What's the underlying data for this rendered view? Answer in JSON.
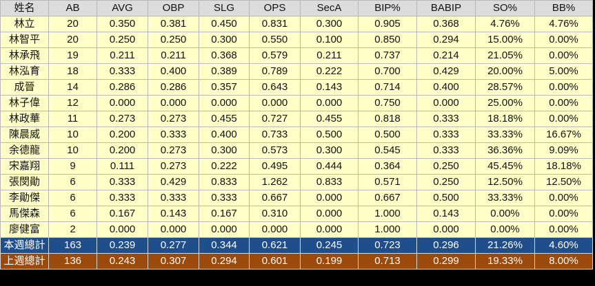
{
  "headers": [
    "姓名",
    "AB",
    "AVG",
    "OBP",
    "SLG",
    "OPS",
    "SecA",
    "BIP%",
    "BABIP",
    "SO%",
    "BB%"
  ],
  "players": [
    [
      "林立",
      "20",
      "0.350",
      "0.381",
      "0.450",
      "0.831",
      "0.300",
      "0.905",
      "0.368",
      "4.76%",
      "4.76%"
    ],
    [
      "林智平",
      "20",
      "0.250",
      "0.250",
      "0.300",
      "0.550",
      "0.100",
      "0.850",
      "0.294",
      "15.00%",
      "0.00%"
    ],
    [
      "林承飛",
      "19",
      "0.211",
      "0.211",
      "0.368",
      "0.579",
      "0.211",
      "0.737",
      "0.214",
      "21.05%",
      "0.00%"
    ],
    [
      "林泓育",
      "18",
      "0.333",
      "0.400",
      "0.389",
      "0.789",
      "0.222",
      "0.700",
      "0.429",
      "20.00%",
      "5.00%"
    ],
    [
      "成晉",
      "14",
      "0.286",
      "0.286",
      "0.357",
      "0.643",
      "0.143",
      "0.714",
      "0.400",
      "28.57%",
      "0.00%"
    ],
    [
      "林子偉",
      "12",
      "0.000",
      "0.000",
      "0.000",
      "0.000",
      "0.000",
      "0.750",
      "0.000",
      "25.00%",
      "0.00%"
    ],
    [
      "林政華",
      "11",
      "0.273",
      "0.273",
      "0.455",
      "0.727",
      "0.455",
      "0.818",
      "0.333",
      "18.18%",
      "0.00%"
    ],
    [
      "陳晨威",
      "10",
      "0.200",
      "0.333",
      "0.400",
      "0.733",
      "0.500",
      "0.500",
      "0.333",
      "33.33%",
      "16.67%"
    ],
    [
      "余德龍",
      "10",
      "0.200",
      "0.273",
      "0.300",
      "0.573",
      "0.300",
      "0.545",
      "0.333",
      "36.36%",
      "9.09%"
    ],
    [
      "宋嘉翔",
      "9",
      "0.111",
      "0.273",
      "0.222",
      "0.495",
      "0.444",
      "0.364",
      "0.250",
      "45.45%",
      "18.18%"
    ],
    [
      "張閔勛",
      "6",
      "0.333",
      "0.429",
      "0.833",
      "1.262",
      "0.833",
      "0.571",
      "0.250",
      "12.50%",
      "12.50%"
    ],
    [
      "李勛傑",
      "6",
      "0.333",
      "0.333",
      "0.333",
      "0.667",
      "0.000",
      "0.667",
      "0.500",
      "33.33%",
      "0.00%"
    ],
    [
      "馬傑森",
      "6",
      "0.167",
      "0.143",
      "0.167",
      "0.310",
      "0.000",
      "1.000",
      "0.143",
      "0.00%",
      "0.00%"
    ],
    [
      "廖健富",
      "2",
      "0.000",
      "0.000",
      "0.000",
      "0.000",
      "0.000",
      "1.000",
      "0.000",
      "0.00%",
      "0.00%"
    ]
  ],
  "totals": [
    [
      "本週總計",
      "163",
      "0.239",
      "0.277",
      "0.344",
      "0.621",
      "0.245",
      "0.723",
      "0.296",
      "21.26%",
      "4.60%"
    ],
    [
      "上週總計",
      "136",
      "0.243",
      "0.307",
      "0.294",
      "0.601",
      "0.199",
      "0.713",
      "0.299",
      "19.33%",
      "8.00%"
    ]
  ],
  "colors": {
    "header_bg": "#dcdcdc",
    "player_row_bg": "#ffffc8",
    "this_week_bg": "#1f4e8c",
    "last_week_bg": "#9c4a0c"
  }
}
